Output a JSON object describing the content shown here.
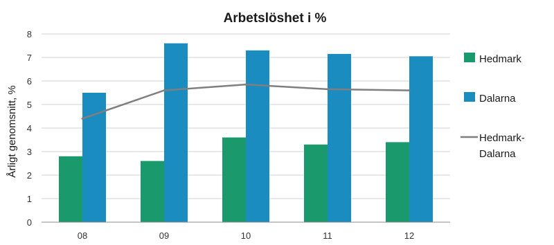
{
  "chart_data": {
    "type": "bar",
    "title": "Arbetslöshet i %",
    "xlabel": "",
    "ylabel": "Årligt genomsnitt, %",
    "categories": [
      "08",
      "09",
      "10",
      "11",
      "12"
    ],
    "ylim": [
      0,
      8
    ],
    "yticks": [
      "0",
      "1",
      "2",
      "3",
      "4",
      "5",
      "6",
      "7",
      "8"
    ],
    "grid": true,
    "legend_position": "right",
    "series": [
      {
        "name": "Hedmark",
        "kind": "bar",
        "color": "#1a9a6c",
        "values": [
          2.8,
          2.6,
          3.6,
          3.3,
          3.4
        ]
      },
      {
        "name": "Dalarna",
        "kind": "bar",
        "color": "#1a8cc0",
        "values": [
          5.5,
          7.6,
          7.3,
          7.15,
          7.05
        ]
      },
      {
        "name": "Hedmark-Dalarna",
        "legend_lines": [
          "Hedmark-",
          "Dalarna"
        ],
        "kind": "line",
        "color": "#7f7f7f",
        "values": [
          4.4,
          5.6,
          5.85,
          5.65,
          5.6
        ]
      }
    ]
  }
}
